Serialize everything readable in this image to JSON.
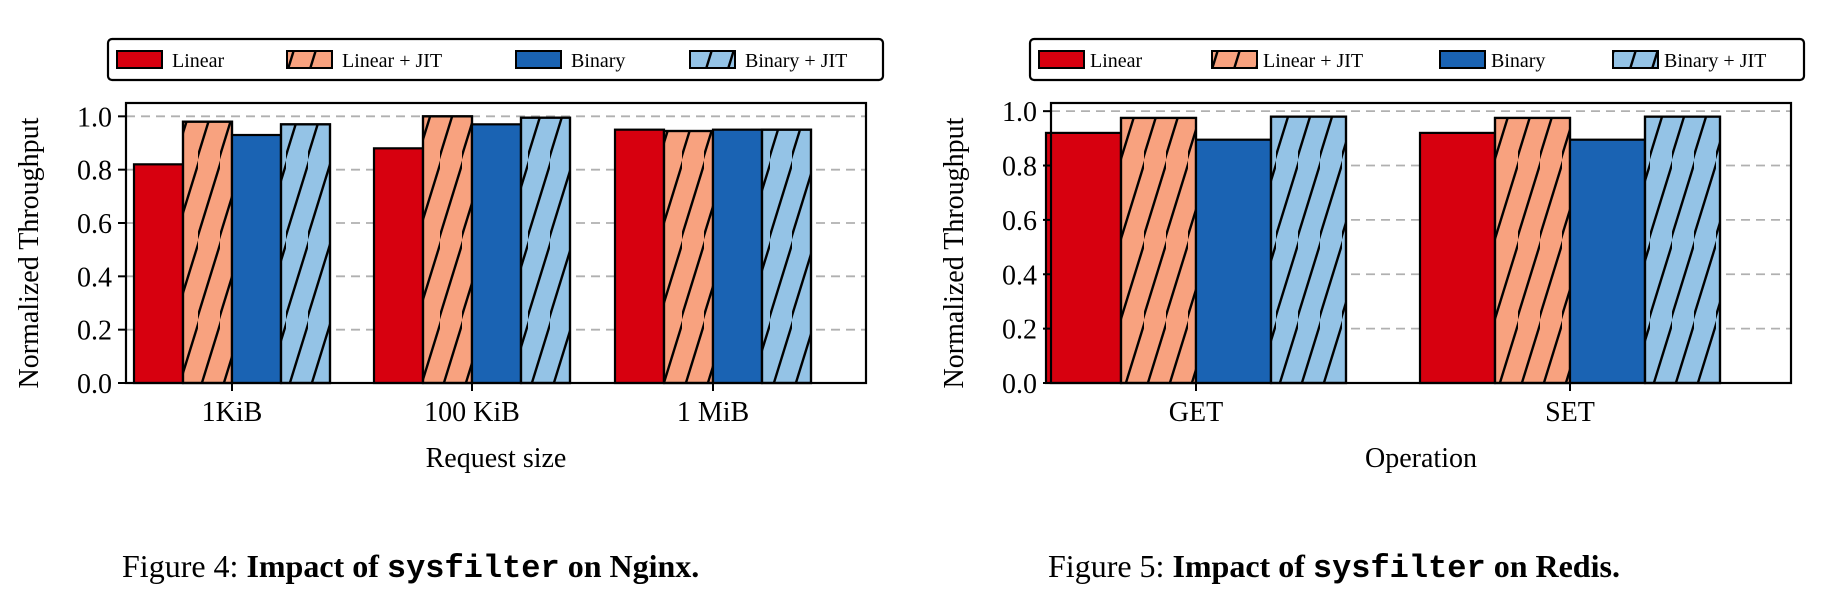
{
  "chart_data": [
    {
      "type": "bar",
      "xlabel": "Request size",
      "ylabel": "Normalized Throughput",
      "categories": [
        "1KiB",
        "100 KiB",
        "1 MiB"
      ],
      "ylim": [
        0,
        1.05
      ],
      "yticks": [
        "0.0",
        "0.2",
        "0.4",
        "0.6",
        "0.8",
        "1.0"
      ],
      "grid": "horizontal dashed",
      "legend": "top",
      "series": [
        {
          "name": "Linear",
          "values": [
            0.82,
            0.88,
            0.95
          ],
          "color": "#d7000f",
          "hatch": false
        },
        {
          "name": "Linear + JIT",
          "values": [
            0.98,
            1.0,
            0.945
          ],
          "color": "#f8a27f",
          "hatch": true
        },
        {
          "name": "Binary",
          "values": [
            0.93,
            0.97,
            0.95
          ],
          "color": "#1a63b3",
          "hatch": false
        },
        {
          "name": "Binary + JIT",
          "values": [
            0.97,
            0.995,
            0.95
          ],
          "color": "#94c3e6",
          "hatch": true
        }
      ]
    },
    {
      "type": "bar",
      "xlabel": "Operation",
      "ylabel": "Normalized Throughput",
      "categories": [
        "GET",
        "SET"
      ],
      "ylim": [
        0,
        1.03
      ],
      "yticks": [
        "0.0",
        "0.2",
        "0.4",
        "0.6",
        "0.8",
        "1.0"
      ],
      "grid": "horizontal dashed",
      "legend": "top",
      "series": [
        {
          "name": "Linear",
          "values": [
            0.92,
            0.92
          ],
          "color": "#d7000f",
          "hatch": false
        },
        {
          "name": "Linear + JIT",
          "values": [
            0.975,
            0.975
          ],
          "color": "#f8a27f",
          "hatch": true
        },
        {
          "name": "Binary",
          "values": [
            0.895,
            0.895
          ],
          "color": "#1a63b3",
          "hatch": false
        },
        {
          "name": "Binary + JIT",
          "values": [
            0.98,
            0.98
          ],
          "color": "#94c3e6",
          "hatch": true
        }
      ]
    }
  ],
  "captions": [
    {
      "prefix": "Figure 4: ",
      "bold1": "Impact of ",
      "code": "sysfilter",
      "bold2": " on Nginx."
    },
    {
      "prefix": "Figure 5: ",
      "bold1": "Impact of ",
      "code": "sysfilter",
      "bold2": " on Redis."
    }
  ]
}
